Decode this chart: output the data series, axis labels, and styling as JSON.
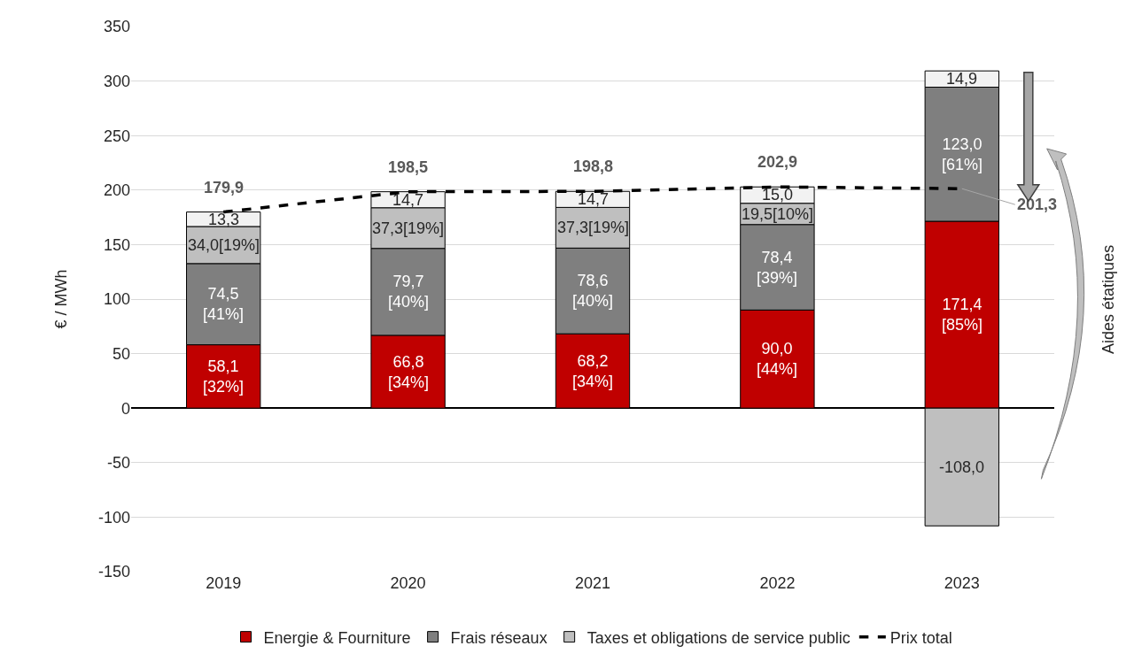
{
  "chart_data": {
    "type": "bar",
    "stacked": true,
    "ylabel": "€ / MWh",
    "categories": [
      "2019",
      "2020",
      "2021",
      "2022",
      "2023"
    ],
    "ylim": [
      -150,
      350
    ],
    "yticks": [
      -150,
      -100,
      -50,
      0,
      50,
      100,
      150,
      200,
      250,
      300,
      350
    ],
    "grid": "y",
    "legend": "bottom",
    "series": [
      {
        "name": "Energie & Fourniture",
        "color": "#c00000",
        "values": [
          58.1,
          66.8,
          68.2,
          90.0,
          171.4
        ],
        "value_labels": [
          "58,1\n[32%]",
          "66,8\n[34%]",
          "68,2\n[34%]",
          "90,0\n[44%]",
          "171,4\n[85%]"
        ]
      },
      {
        "name": "Frais réseaux",
        "color": "#7f7f7f",
        "values": [
          74.5,
          79.7,
          78.6,
          78.4,
          123.0
        ],
        "value_labels": [
          "74,5\n[41%]",
          "79,7\n[40%]",
          "78,6\n[40%]",
          "78,4\n[39%]",
          "123,0\n[61%]"
        ]
      },
      {
        "name": "Taxes et obligations de service public",
        "color": "#bfbfbf",
        "values": [
          34.0,
          37.3,
          37.3,
          19.5,
          -108.0
        ],
        "value_labels": [
          "34,0[19%]",
          "37,3[19%]",
          "37,3[19%]",
          "19,5[10%]",
          "-108,0"
        ]
      },
      {
        "color": "#f2f2f2",
        "values": [
          13.3,
          14.7,
          14.7,
          15.0,
          14.9
        ],
        "value_labels": [
          "13,3",
          "14,7",
          "14,7",
          "15,0",
          "14,9"
        ]
      },
      {
        "name": "Prix total",
        "type": "line",
        "color": "#000000",
        "line_style": "dashed",
        "marker": "none",
        "values": [
          179.9,
          198.5,
          198.8,
          202.9,
          201.3
        ]
      }
    ],
    "totals": [
      "179,9",
      "198,5",
      "198,8",
      "202,9",
      null
    ],
    "annotations": [
      "Aides étatiques",
      {
        "text": "201,3",
        "x": "2023",
        "y": 201.3
      }
    ]
  }
}
